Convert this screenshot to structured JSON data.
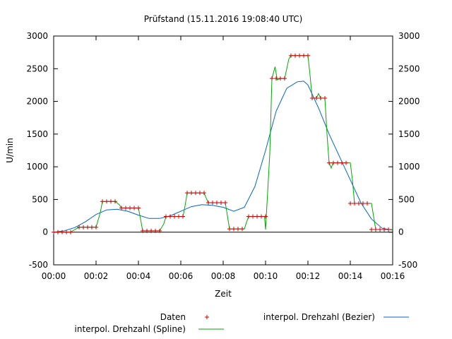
{
  "chart_data": {
    "type": "line",
    "title": "Prüfstand (15.11.2016 19:08:40 UTC)",
    "xlabel": "Zeit",
    "ylabel": "U/min",
    "xlim": [
      0,
      16
    ],
    "ylim": [
      -500,
      3000
    ],
    "x_tick_labels": [
      "00:00",
      "00:02",
      "00:04",
      "00:06",
      "00:08",
      "00:10",
      "00:12",
      "00:14",
      "00:16"
    ],
    "y_tick_labels": [
      "-500",
      "0",
      "500",
      "1000",
      "1500",
      "2000",
      "2500",
      "3000"
    ],
    "y_ticks": [
      -500,
      0,
      500,
      1000,
      1500,
      2000,
      2500,
      3000
    ],
    "x_unit": "minutes",
    "grid": false,
    "zero_line": true,
    "mirror_right_axis": true,
    "legend_position": "bottom",
    "series": [
      {
        "name": "Daten",
        "style": "points",
        "marker": "+",
        "color": "#cc0000",
        "x": [
          0,
          0.2,
          0.4,
          0.6,
          0.8,
          1.2,
          1.4,
          1.6,
          1.8,
          2.0,
          2.3,
          2.5,
          2.7,
          2.9,
          3.2,
          3.4,
          3.6,
          3.8,
          4.0,
          4.2,
          4.4,
          4.6,
          4.8,
          5.0,
          5.3,
          5.5,
          5.7,
          5.9,
          6.1,
          6.3,
          6.5,
          6.7,
          6.9,
          7.1,
          7.3,
          7.5,
          7.7,
          7.9,
          8.1,
          8.3,
          8.5,
          8.7,
          8.9,
          9.2,
          9.4,
          9.6,
          9.8,
          10.0,
          10.3,
          10.5,
          10.7,
          10.9,
          11.2,
          11.4,
          11.6,
          11.8,
          12.0,
          12.2,
          12.4,
          12.6,
          12.8,
          13.0,
          13.2,
          13.4,
          13.6,
          13.8,
          14.0,
          14.2,
          14.4,
          14.6,
          14.8,
          15.0,
          15.2,
          15.4,
          15.6,
          15.8
        ],
        "values": [
          0,
          0,
          0,
          0,
          0,
          75,
          75,
          75,
          75,
          75,
          470,
          470,
          470,
          470,
          370,
          370,
          370,
          370,
          370,
          20,
          20,
          20,
          20,
          20,
          240,
          240,
          240,
          240,
          240,
          600,
          600,
          600,
          600,
          600,
          450,
          450,
          450,
          450,
          450,
          50,
          50,
          50,
          50,
          240,
          240,
          240,
          240,
          240,
          2350,
          2350,
          2350,
          2350,
          2700,
          2700,
          2700,
          2700,
          2700,
          2050,
          2050,
          2050,
          2050,
          1060,
          1060,
          1060,
          1060,
          1060,
          440,
          440,
          440,
          440,
          440,
          40,
          40,
          40,
          40,
          40
        ]
      },
      {
        "name": "interpol. Drehzahl (Spline)",
        "style": "line",
        "color": "#00aa00",
        "x": [
          0,
          0.8,
          1.0,
          1.2,
          1.8,
          2.0,
          2.2,
          2.3,
          2.9,
          3.1,
          3.2,
          3.8,
          4.0,
          4.1,
          4.2,
          4.8,
          5.0,
          5.2,
          5.3,
          5.9,
          6.1,
          6.2,
          6.3,
          6.9,
          7.1,
          7.2,
          7.3,
          7.9,
          8.1,
          8.2,
          8.3,
          8.9,
          9.0,
          9.1,
          9.2,
          9.8,
          9.95,
          10.0,
          10.2,
          10.3,
          10.45,
          10.55,
          10.7,
          10.9,
          11.0,
          11.1,
          11.2,
          11.8,
          11.9,
          12.0,
          12.1,
          12.2,
          12.4,
          12.5,
          12.6,
          12.7,
          12.8,
          12.9,
          13.0,
          13.1,
          13.15,
          13.2,
          13.8,
          13.9,
          14.0,
          14.1,
          14.2,
          14.8,
          14.9,
          15.0,
          15.1,
          15.2,
          15.8,
          16.0
        ],
        "values": [
          0,
          0,
          40,
          75,
          75,
          75,
          300,
          470,
          470,
          420,
          370,
          370,
          370,
          200,
          20,
          20,
          20,
          130,
          240,
          240,
          240,
          400,
          600,
          600,
          600,
          520,
          450,
          450,
          450,
          250,
          50,
          50,
          50,
          150,
          240,
          240,
          240,
          40,
          1200,
          2350,
          2530,
          2330,
          2350,
          2350,
          2500,
          2650,
          2700,
          2700,
          2700,
          2700,
          2400,
          2050,
          2050,
          2120,
          2050,
          2050,
          2050,
          1500,
          1060,
          980,
          1030,
          1060,
          1060,
          1060,
          1060,
          800,
          440,
          440,
          440,
          440,
          240,
          40,
          40,
          40
        ]
      },
      {
        "name": "interpol. Drehzahl (Bezier)",
        "style": "line",
        "color": "#0066cc",
        "x": [
          0,
          0.5,
          1.0,
          1.5,
          2.0,
          2.5,
          3.0,
          3.5,
          4.0,
          4.5,
          5.0,
          5.5,
          6.0,
          6.5,
          7.0,
          7.5,
          8.0,
          8.5,
          9.0,
          9.5,
          10.0,
          10.5,
          11.0,
          11.5,
          11.8,
          12.0,
          12.5,
          13.0,
          13.5,
          14.0,
          14.5,
          15.0,
          15.5,
          16.0
        ],
        "values": [
          0,
          20,
          70,
          160,
          270,
          340,
          350,
          320,
          260,
          210,
          210,
          250,
          320,
          390,
          420,
          410,
          380,
          320,
          380,
          700,
          1250,
          1850,
          2200,
          2300,
          2310,
          2250,
          1900,
          1500,
          1150,
          800,
          450,
          200,
          60,
          30
        ]
      }
    ]
  }
}
